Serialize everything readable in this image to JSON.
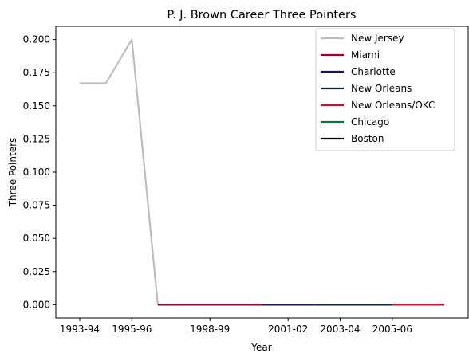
{
  "chart_data": {
    "type": "line",
    "title": "P. J. Brown Career Three Pointers",
    "xlabel": "Year",
    "ylabel": "Three Pointers",
    "x_categories": [
      "1993-94",
      "1994-95",
      "1995-96",
      "1996-97",
      "1997-98",
      "1998-99",
      "1999-00",
      "2000-01",
      "2001-02",
      "2002-03",
      "2003-04",
      "2004-05",
      "2005-06",
      "2006-07",
      "2007-08"
    ],
    "x_tick_labels": [
      "1993-94",
      "1995-96",
      "1998-99",
      "2001-02",
      "2003-04",
      "2005-06"
    ],
    "x_tick_positions": [
      "1993-94",
      "1995-96",
      "1998-99",
      "2001-02",
      "2003-04",
      "2005-06"
    ],
    "ylim": [
      -0.01,
      0.21
    ],
    "y_ticks": [
      0.0,
      0.025,
      0.05,
      0.075,
      0.1,
      0.125,
      0.15,
      0.175,
      0.2
    ],
    "y_tick_labels": [
      "0.000",
      "0.025",
      "0.050",
      "0.075",
      "0.100",
      "0.125",
      "0.150",
      "0.175",
      "0.200"
    ],
    "legend_position": "top-right",
    "series": [
      {
        "name": "New Jersey",
        "color": "#bdbdbd",
        "x": [
          "1993-94",
          "1994-95",
          "1995-96",
          "1996-97"
        ],
        "y": [
          0.167,
          0.167,
          0.2,
          0.0
        ]
      },
      {
        "name": "Miami",
        "color": "#98002e",
        "x": [
          "1996-97",
          "1997-98",
          "1998-99",
          "1999-00",
          "2000-01"
        ],
        "y": [
          0.0,
          0.0,
          0.0,
          0.0,
          0.0
        ]
      },
      {
        "name": "Charlotte",
        "color": "#1d1160",
        "x": [
          "2000-01",
          "2001-02",
          "2002-03"
        ],
        "y": [
          0.0,
          0.0,
          0.0
        ]
      },
      {
        "name": "New Orleans",
        "color": "#0c2340",
        "x": [
          "2002-03",
          "2003-04",
          "2004-05",
          "2005-06"
        ],
        "y": [
          0.0,
          0.0,
          0.0,
          0.0
        ]
      },
      {
        "name": "New Orleans/OKC",
        "color": "#c8102e",
        "x": [
          "2005-06",
          "2006-07",
          "2007-08"
        ],
        "y": [
          0.0,
          0.0,
          0.0
        ]
      },
      {
        "name": "Chicago",
        "color": "#007a33",
        "x": [],
        "y": []
      },
      {
        "name": "Boston",
        "color": "#000000",
        "x": [],
        "y": []
      }
    ]
  }
}
